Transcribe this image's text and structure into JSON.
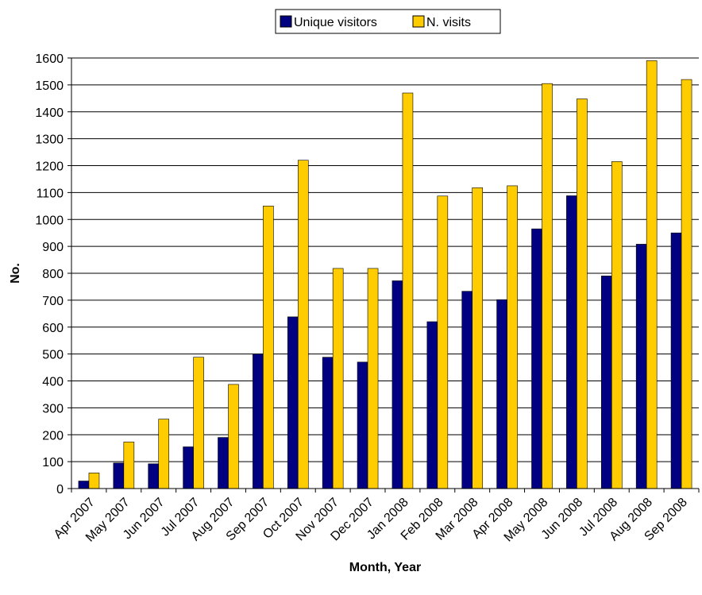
{
  "chart_data": {
    "type": "bar",
    "title": "",
    "xlabel": "Month, Year",
    "ylabel": "No.",
    "ylim": [
      0,
      1600
    ],
    "yticks": [
      0,
      100,
      200,
      300,
      400,
      500,
      600,
      700,
      800,
      900,
      1000,
      1100,
      1200,
      1300,
      1400,
      1500,
      1600
    ],
    "grid": true,
    "legend_position": "top",
    "categories": [
      "Apr 2007",
      "May 2007",
      "Jun 2007",
      "Jul 2007",
      "Aug 2007",
      "Sep 2007",
      "Oct 2007",
      "Nov 2007",
      "Dec 2007",
      "Jan 2008",
      "Feb 2008",
      "Mar 2008",
      "Apr 2008",
      "May 2008",
      "Jun 2008",
      "Jul 2008",
      "Aug 2008",
      "Sep 2008"
    ],
    "series": [
      {
        "name": "Unique visitors",
        "color": "#000080",
        "values": [
          28,
          95,
          92,
          155,
          190,
          500,
          638,
          488,
          470,
          772,
          620,
          733,
          702,
          965,
          1088,
          790,
          908,
          950
        ]
      },
      {
        "name": "N. visits",
        "color": "#FFCC00",
        "values": [
          58,
          173,
          258,
          488,
          387,
          1050,
          1220,
          818,
          818,
          1470,
          1087,
          1118,
          1125,
          1505,
          1448,
          1215,
          1590,
          1520
        ]
      }
    ]
  }
}
